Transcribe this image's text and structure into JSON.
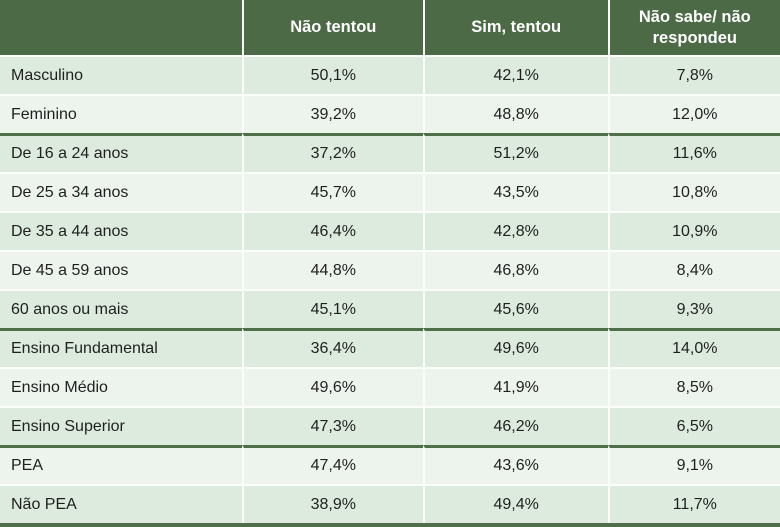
{
  "colors": {
    "header-bg": "#4b6a45",
    "header-text": "#ffffff",
    "row-mint": "#dcebdd",
    "row-light": "#edf4ed",
    "divider": "#fbfdfb",
    "separator": "#4e6f48",
    "text": "#1f1f1f"
  },
  "chart_data": {
    "type": "table",
    "title": "",
    "columns": [
      "",
      "Não tentou",
      "Sim, tentou",
      "Não sabe/ não respondeu"
    ],
    "layout": {
      "group_breaks_before_rows": [
        2,
        7,
        10
      ],
      "banding": "alternating mint/light restarting per group",
      "header_style": "dark green, white bold text",
      "column_align": [
        "left",
        "center",
        "center",
        "center"
      ]
    },
    "rows": [
      {
        "label": "Masculino",
        "values": [
          "50,1%",
          "42,1%",
          "7,8%"
        ],
        "group": "sexo",
        "shade": "mint"
      },
      {
        "label": "Feminino",
        "values": [
          "39,2%",
          "48,8%",
          "12,0%"
        ],
        "group": "sexo",
        "shade": "light"
      },
      {
        "label": "De 16 a 24 anos",
        "values": [
          "37,2%",
          "51,2%",
          "11,6%"
        ],
        "group": "idade",
        "shade": "mint"
      },
      {
        "label": "De 25 a 34 anos",
        "values": [
          "45,7%",
          "43,5%",
          "10,8%"
        ],
        "group": "idade",
        "shade": "light"
      },
      {
        "label": "De 35 a 44 anos",
        "values": [
          "46,4%",
          "42,8%",
          "10,9%"
        ],
        "group": "idade",
        "shade": "mint"
      },
      {
        "label": "De 45 a 59 anos",
        "values": [
          "44,8%",
          "46,8%",
          "8,4%"
        ],
        "group": "idade",
        "shade": "light"
      },
      {
        "label": "60 anos ou mais",
        "values": [
          "45,1%",
          "45,6%",
          "9,3%"
        ],
        "group": "idade",
        "shade": "mint"
      },
      {
        "label": "Ensino Fundamental",
        "values": [
          "36,4%",
          "49,6%",
          "14,0%"
        ],
        "group": "escolaridade",
        "shade": "mint"
      },
      {
        "label": "Ensino Médio",
        "values": [
          "49,6%",
          "41,9%",
          "8,5%"
        ],
        "group": "escolaridade",
        "shade": "light"
      },
      {
        "label": "Ensino Superior",
        "values": [
          "47,3%",
          "46,2%",
          "6,5%"
        ],
        "group": "escolaridade",
        "shade": "mint"
      },
      {
        "label": "PEA",
        "values": [
          "47,4%",
          "43,6%",
          "9,1%"
        ],
        "group": "pea",
        "shade": "light"
      },
      {
        "label": "Não PEA",
        "values": [
          "38,9%",
          "49,4%",
          "11,7%"
        ],
        "group": "pea",
        "shade": "mint"
      }
    ]
  }
}
